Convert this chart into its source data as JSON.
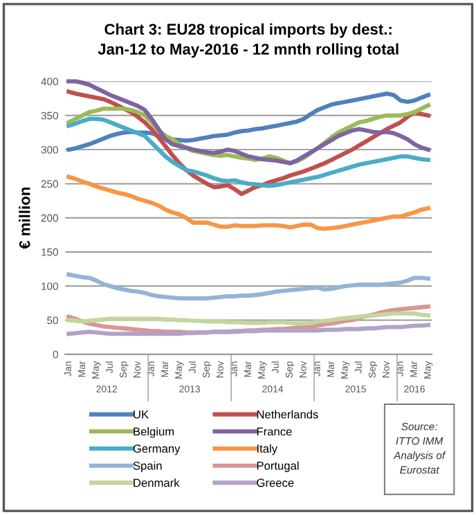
{
  "chart_data": {
    "type": "line",
    "title": "Chart 3: EU28 tropical imports by dest.:\nJan-12 to May-2016 - 12 mnth rolling total",
    "ylabel": "€ million",
    "categories": [
      "Jan",
      null,
      "Mar",
      null,
      "May",
      null,
      "Jul",
      null,
      "Sep",
      null,
      "Nov",
      null,
      "Jan",
      null,
      "Mar",
      null,
      "May",
      null,
      "Jul",
      null,
      "Sep",
      null,
      "Nov",
      null,
      "Jan",
      null,
      "Mar",
      null,
      "May",
      null,
      "Jul",
      null,
      "Sep",
      null,
      "Nov",
      null,
      "Jan",
      null,
      "Mar",
      null,
      "May",
      null,
      "Jul",
      null,
      "Sep",
      null,
      "Nov",
      null,
      "Jan",
      null,
      "Mar",
      null,
      "May"
    ],
    "series": [
      {
        "name": "UK",
        "color": "#4f81bd",
        "values": [
          300,
          302,
          305,
          308,
          312,
          316,
          320,
          323,
          325,
          326,
          325,
          325,
          324,
          320,
          317,
          315,
          314,
          313,
          314,
          316,
          318,
          320,
          321,
          322,
          325,
          327,
          328,
          330,
          331,
          333,
          335,
          337,
          339,
          341,
          345,
          352,
          358,
          362,
          366,
          368,
          370,
          372,
          374,
          376,
          378,
          380,
          382,
          380,
          372,
          370,
          372,
          376,
          380
        ]
      },
      {
        "name": "Netherlands",
        "color": "#c0504d",
        "values": [
          385,
          382,
          380,
          378,
          376,
          374,
          370,
          365,
          360,
          355,
          348,
          340,
          330,
          318,
          305,
          292,
          280,
          270,
          262,
          256,
          250,
          245,
          246,
          248,
          242,
          235,
          240,
          245,
          248,
          252,
          255,
          258,
          262,
          265,
          268,
          272,
          276,
          280,
          285,
          290,
          295,
          300,
          306,
          312,
          318,
          324,
          330,
          335,
          340,
          348,
          355,
          352,
          350
        ]
      },
      {
        "name": "Belgium",
        "color": "#9bbb59",
        "values": [
          340,
          345,
          350,
          355,
          357,
          360,
          360,
          360,
          360,
          358,
          355,
          350,
          340,
          328,
          320,
          315,
          308,
          302,
          298,
          296,
          294,
          292,
          291,
          292,
          290,
          288,
          287,
          285,
          287,
          290,
          288,
          284,
          280,
          283,
          288,
          295,
          302,
          310,
          318,
          325,
          330,
          335,
          340,
          342,
          345,
          348,
          350,
          350,
          350,
          352,
          355,
          360,
          365
        ]
      },
      {
        "name": "France",
        "color": "#8064a2",
        "values": [
          400,
          400,
          398,
          395,
          390,
          385,
          380,
          376,
          372,
          368,
          364,
          358,
          345,
          330,
          315,
          308,
          305,
          303,
          300,
          298,
          296,
          295,
          297,
          300,
          298,
          294,
          290,
          288,
          286,
          285,
          284,
          282,
          280,
          284,
          290,
          296,
          302,
          308,
          314,
          320,
          324,
          328,
          330,
          328,
          326,
          325,
          326,
          324,
          320,
          315,
          308,
          303,
          300
        ]
      },
      {
        "name": "Germany",
        "color": "#4bacc6",
        "values": [
          335,
          338,
          342,
          345,
          345,
          344,
          340,
          336,
          332,
          328,
          324,
          320,
          310,
          300,
          290,
          282,
          276,
          270,
          268,
          265,
          262,
          258,
          255,
          254,
          255,
          252,
          250,
          249,
          248,
          247,
          248,
          250,
          252,
          254,
          256,
          258,
          260,
          263,
          266,
          269,
          272,
          275,
          278,
          280,
          282,
          284,
          286,
          288,
          290,
          290,
          288,
          286,
          285
        ]
      },
      {
        "name": "Italy",
        "color": "#f79646",
        "values": [
          260,
          257,
          253,
          250,
          246,
          243,
          240,
          237,
          235,
          232,
          228,
          225,
          222,
          218,
          212,
          208,
          205,
          200,
          193,
          193,
          193,
          190,
          187,
          187,
          189,
          188,
          188,
          188,
          189,
          189,
          189,
          188,
          186,
          188,
          190,
          190,
          185,
          184,
          185,
          186,
          188,
          190,
          192,
          194,
          196,
          198,
          200,
          202,
          202,
          205,
          208,
          212,
          214
        ]
      },
      {
        "name": "Spain",
        "color": "#95b3d7",
        "values": [
          117,
          115,
          113,
          112,
          108,
          103,
          100,
          97,
          95,
          93,
          92,
          90,
          87,
          85,
          84,
          83,
          82,
          82,
          82,
          82,
          82,
          83,
          84,
          85,
          85,
          86,
          86,
          87,
          88,
          90,
          92,
          93,
          94,
          95,
          96,
          97,
          98,
          95,
          96,
          98,
          100,
          101,
          102,
          102,
          102,
          102,
          103,
          104,
          105,
          108,
          112,
          112,
          111
        ]
      },
      {
        "name": "Portugal",
        "color": "#d99694",
        "values": [
          55,
          52,
          48,
          45,
          43,
          41,
          40,
          39,
          38,
          37,
          36,
          35,
          34,
          34,
          33,
          33,
          33,
          32,
          32,
          32,
          32,
          33,
          33,
          33,
          34,
          34,
          35,
          35,
          36,
          36,
          37,
          37,
          38,
          39,
          40,
          40,
          42,
          44,
          45,
          47,
          49,
          50,
          53,
          56,
          58,
          61,
          63,
          65,
          66,
          67,
          68,
          69,
          70
        ]
      },
      {
        "name": "Denmark",
        "color": "#c3d69b",
        "values": [
          50,
          49,
          48,
          49,
          50,
          51,
          52,
          52,
          52,
          52,
          52,
          52,
          52,
          52,
          51,
          51,
          50,
          50,
          49,
          49,
          48,
          48,
          48,
          47,
          47,
          47,
          46,
          46,
          46,
          47,
          47,
          47,
          46,
          45,
          45,
          46,
          48,
          49,
          50,
          52,
          53,
          54,
          55,
          56,
          57,
          58,
          59,
          60,
          60,
          60,
          60,
          58,
          57
        ]
      },
      {
        "name": "Greece",
        "color": "#b3a2c7",
        "values": [
          30,
          31,
          32,
          33,
          32,
          31,
          30,
          30,
          30,
          30,
          30,
          30,
          30,
          30,
          30,
          30,
          30,
          31,
          31,
          32,
          32,
          33,
          33,
          33,
          33,
          34,
          34,
          34,
          35,
          35,
          35,
          35,
          35,
          35,
          35,
          35,
          35,
          36,
          36,
          36,
          37,
          37,
          37,
          38,
          38,
          39,
          40,
          40,
          40,
          41,
          42,
          42,
          43
        ]
      }
    ],
    "ylim": [
      0,
      400
    ],
    "yticks": [
      0,
      50,
      100,
      150,
      200,
      250,
      300,
      350,
      400
    ],
    "grid": "y",
    "legend": "bottom",
    "marker": "none",
    "line_style": "solid",
    "annotations": [
      "2012",
      "2013",
      "2014",
      "2015",
      "2016",
      "Source:\nITTO IMM\nAnalysis of\nEurostat"
    ]
  }
}
